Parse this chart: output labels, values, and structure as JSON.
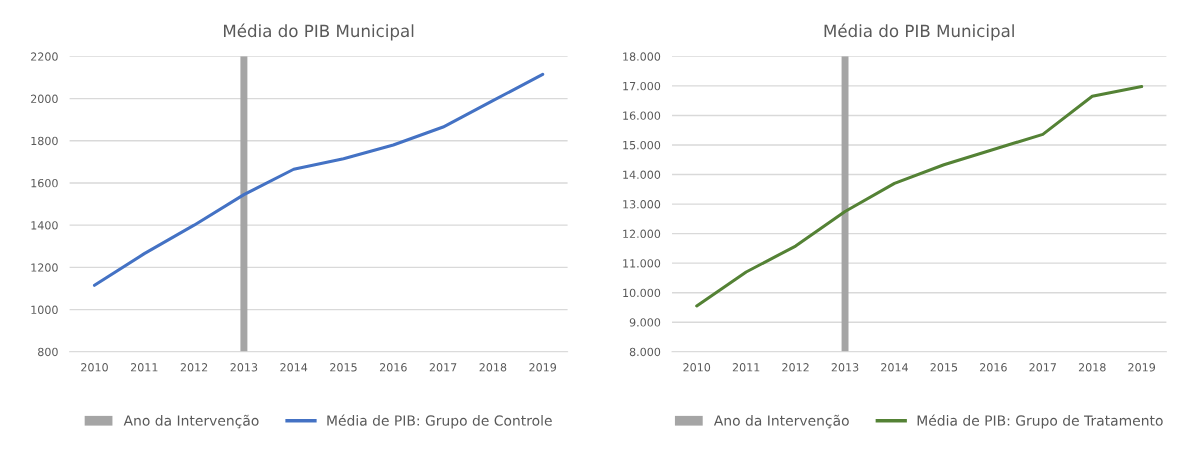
{
  "chart_data": [
    {
      "type": "line",
      "title": "Média do PIB Municipal",
      "categories": [
        "2010",
        "2011",
        "2012",
        "2013",
        "2014",
        "2015",
        "2016",
        "2017",
        "2018",
        "2019"
      ],
      "ylim": [
        800,
        2200
      ],
      "yticks": [
        800,
        1000,
        1200,
        1400,
        1600,
        1800,
        2000,
        2200
      ],
      "grid": "y",
      "legend": "bottom",
      "series": [
        {
          "name": "Ano da Intervenção",
          "type": "bar",
          "color": "#a5a5a5",
          "values": [
            null,
            null,
            null,
            2200,
            null,
            null,
            null,
            null,
            null,
            null
          ]
        },
        {
          "name": "Média de PIB: Grupo de Controle",
          "color": "#4472c4",
          "values": [
            1115,
            1265,
            1400,
            1545,
            1665,
            1715,
            1780,
            1865,
            1990,
            2115
          ]
        }
      ]
    },
    {
      "type": "line",
      "title": "Média do PIB Municipal",
      "categories": [
        "2010",
        "2011",
        "2012",
        "2013",
        "2014",
        "2015",
        "2016",
        "2017",
        "2018",
        "2019"
      ],
      "ylim": [
        8000,
        18000
      ],
      "yticks": [
        {
          "value": 8000,
          "label": "8.000"
        },
        {
          "value": 9000,
          "label": "9.000"
        },
        {
          "value": 10000,
          "label": "10.000"
        },
        {
          "value": 11000,
          "label": "11.000"
        },
        {
          "value": 12000,
          "label": "12.000"
        },
        {
          "value": 13000,
          "label": "13.000"
        },
        {
          "value": 14000,
          "label": "14.000"
        },
        {
          "value": 15000,
          "label": "15.000"
        },
        {
          "value": 16000,
          "label": "16.000"
        },
        {
          "value": 17000,
          "label": "17.000"
        },
        {
          "value": 18000,
          "label": "18.000"
        }
      ],
      "grid": "y",
      "legend": "bottom",
      "series": [
        {
          "name": "Ano da Intervenção",
          "type": "bar",
          "color": "#a5a5a5",
          "values": [
            null,
            null,
            null,
            18000,
            null,
            null,
            null,
            null,
            null,
            null
          ]
        },
        {
          "name": "Média de PIB: Grupo de Tratamento",
          "color": "#548235",
          "values": [
            9550,
            10700,
            11580,
            12750,
            13700,
            14330,
            14850,
            15360,
            16650,
            16980
          ]
        }
      ]
    }
  ]
}
